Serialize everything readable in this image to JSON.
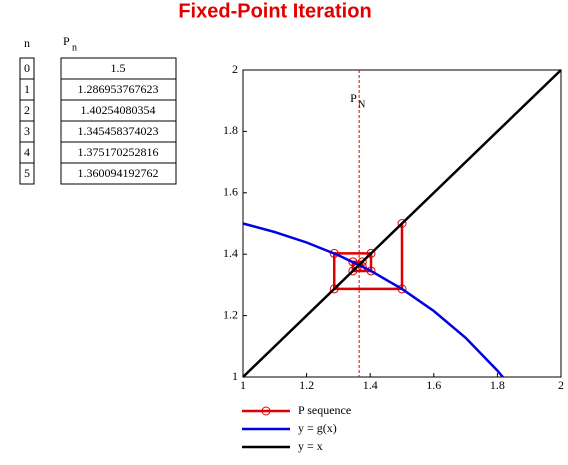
{
  "title": "Fixed-Point Iteration",
  "table": {
    "header_n": "n",
    "header_p": "P",
    "header_p_sub": "n",
    "rows": [
      [
        0,
        1.5
      ],
      [
        1,
        1.286953767623
      ],
      [
        2,
        1.40254080354
      ],
      [
        3,
        1.345458374023
      ],
      [
        4,
        1.375170252816
      ],
      [
        5,
        1.360094192762
      ]
    ]
  },
  "chart_data": {
    "type": "line",
    "xlim": [
      1,
      2
    ],
    "ylim": [
      1,
      2
    ],
    "xticks": [
      1,
      1.2,
      1.4,
      1.6,
      1.8,
      2
    ],
    "yticks": [
      1,
      1.2,
      1.4,
      1.6,
      1.8,
      2
    ],
    "vline": {
      "x": 1.36523,
      "label": "P",
      "label_sub": "N",
      "color": "#e00000"
    },
    "series": [
      {
        "name": "P sequence",
        "color": "#e00000",
        "markers": true,
        "x": [
          1.5,
          1.5,
          1.286953767623,
          1.286953767623,
          1.40254080354,
          1.40254080354,
          1.345458374023,
          1.345458374023,
          1.375170252816,
          1.375170252816,
          1.360094192762
        ],
        "values": [
          1.5,
          1.286953767623,
          1.286953767623,
          1.40254080354,
          1.40254080354,
          1.345458374023,
          1.345458374023,
          1.375170252816,
          1.375170252816,
          1.360094192762,
          1.360094192762
        ]
      },
      {
        "name": "y = g(x)",
        "color": "#0000e0",
        "markers": false,
        "x": [
          1,
          1.1,
          1.2,
          1.3,
          1.4,
          1.5,
          1.6,
          1.7,
          1.8,
          1.817
        ],
        "values": [
          1.5,
          1.4722,
          1.4381,
          1.3967,
          1.3468,
          1.2869,
          1.2149,
          1.1277,
          1.0208,
          1.0
        ]
      },
      {
        "name": "y = x",
        "color": "#000000",
        "markers": false,
        "x": [
          1,
          2
        ],
        "values": [
          1,
          2
        ]
      }
    ]
  }
}
